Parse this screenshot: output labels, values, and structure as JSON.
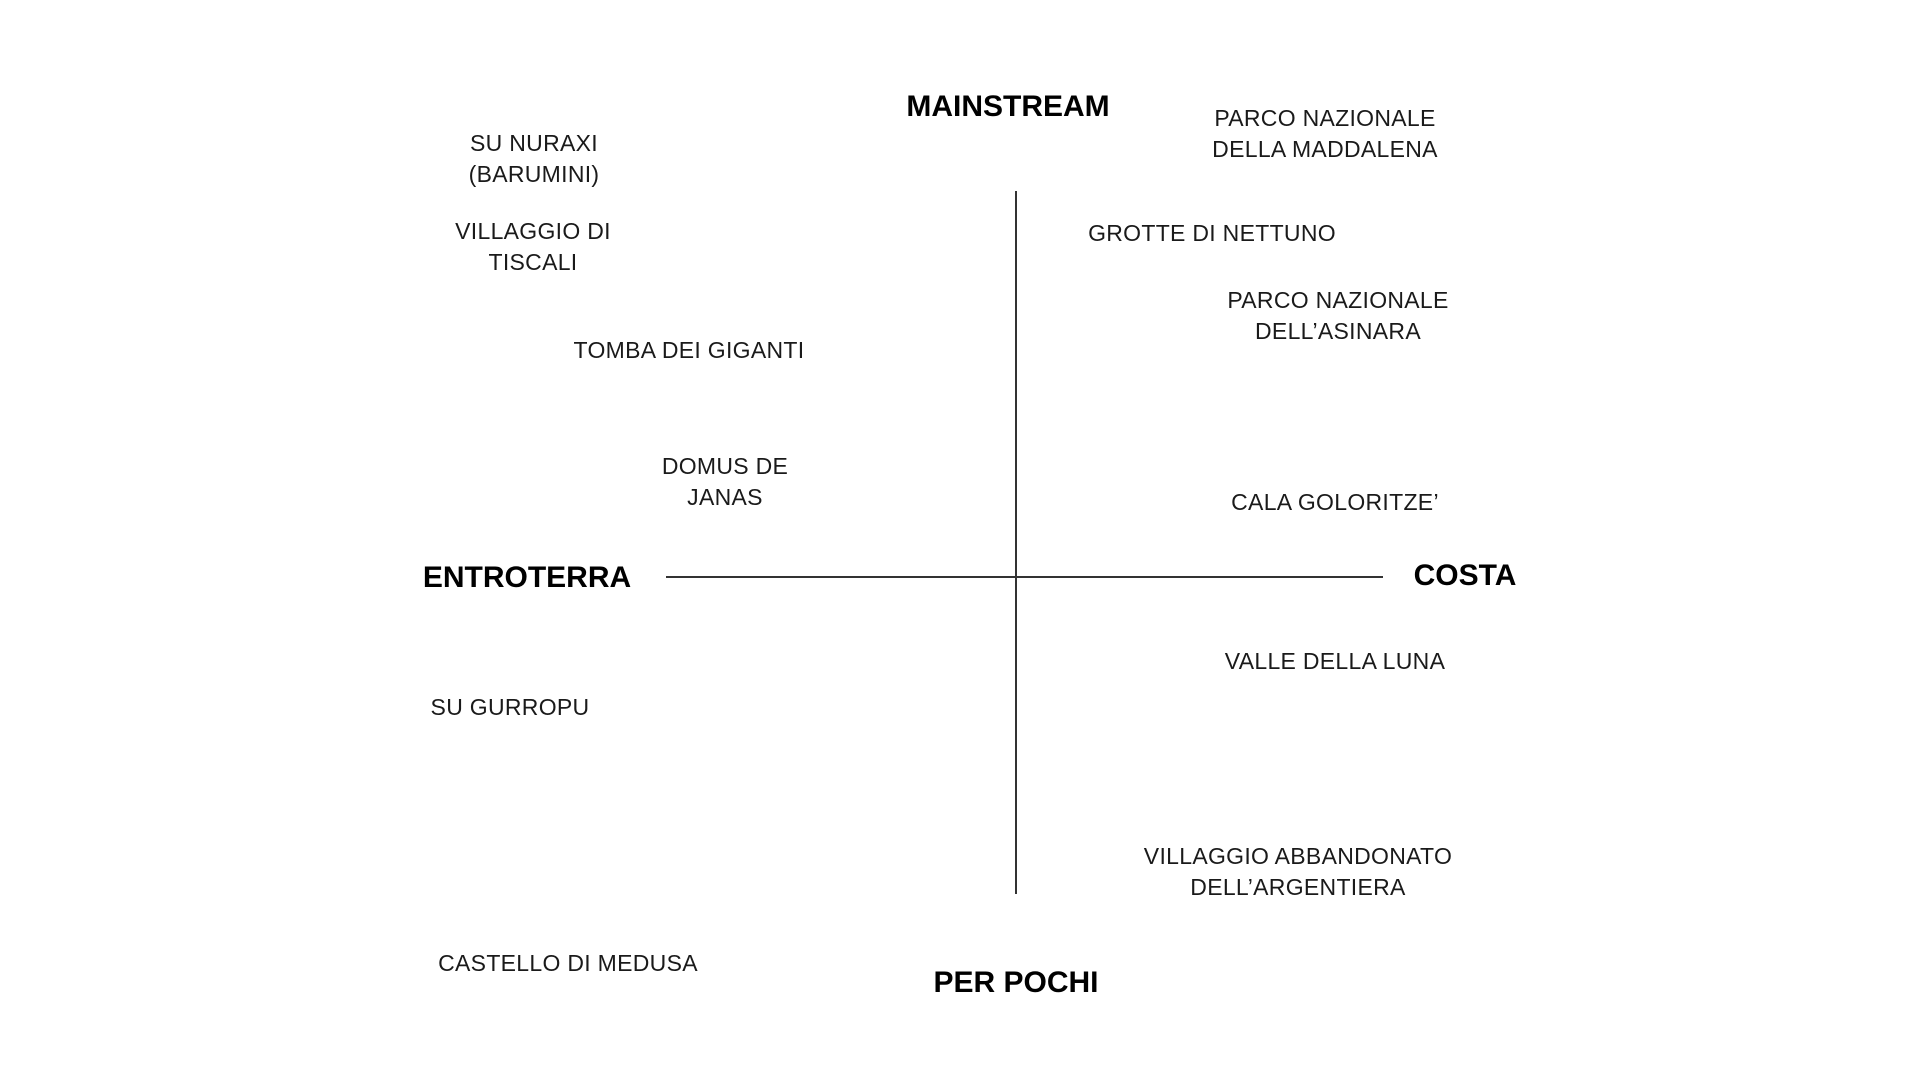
{
  "axes": {
    "top": "MAINSTREAM",
    "bottom": "PER POCHI",
    "left": "ENTROTERRA",
    "right": "COSTA"
  },
  "items": [
    {
      "lines": [
        "SU NURAXI",
        "(BARUMINI)"
      ]
    },
    {
      "lines": [
        "VILLAGGIO DI",
        "TISCALI"
      ]
    },
    {
      "lines": [
        "TOMBA DEI GIGANTI"
      ]
    },
    {
      "lines": [
        "DOMUS DE",
        "JANAS"
      ]
    },
    {
      "lines": [
        "SU GURROPU"
      ]
    },
    {
      "lines": [
        "CASTELLO DI MEDUSA"
      ]
    },
    {
      "lines": [
        "PARCO NAZIONALE",
        "DELLA MADDALENA"
      ]
    },
    {
      "lines": [
        "GROTTE DI NETTUNO"
      ]
    },
    {
      "lines": [
        "PARCO NAZIONALE",
        "DELL’ASINARA"
      ]
    },
    {
      "lines": [
        "CALA GOLORITZE’"
      ]
    },
    {
      "lines": [
        "VALLE DELLA LUNA"
      ]
    },
    {
      "lines": [
        "VILLAGGIO ABBANDONATO",
        "DELL’ARGENTIERA"
      ]
    }
  ]
}
